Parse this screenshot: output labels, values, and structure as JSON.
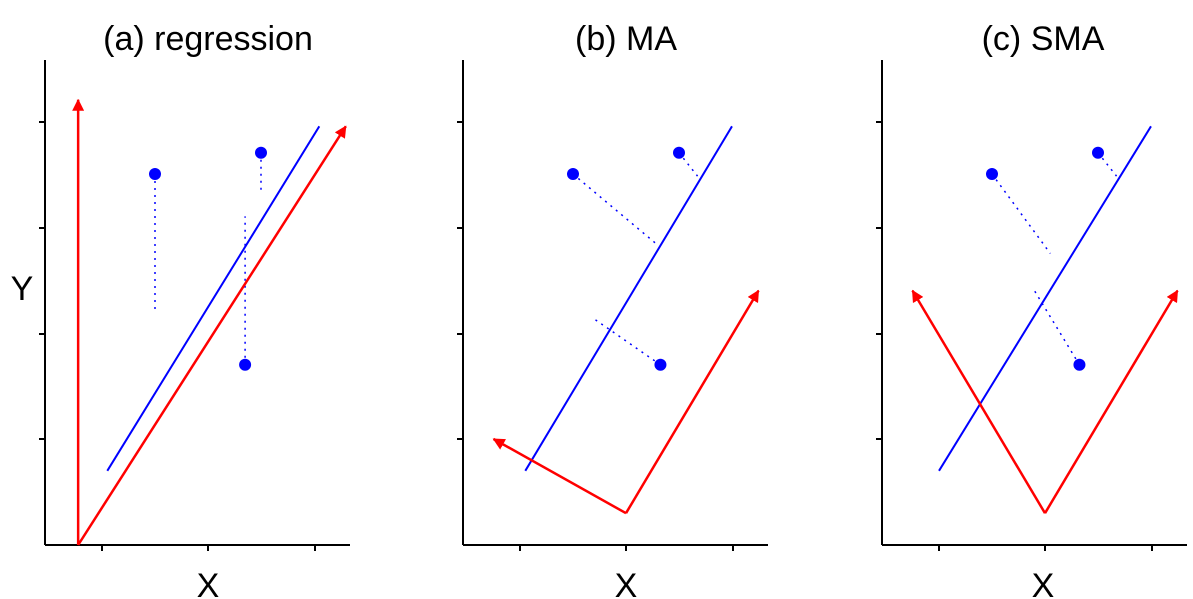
{
  "colors": {
    "fit_line": "#0000ff",
    "residual": "#0000ff",
    "points": "#0000ff",
    "arrows": "#ff0000",
    "axes": "#000000"
  },
  "ylabel": "Y",
  "panels": [
    {
      "id": "a",
      "title": "(a) regression",
      "xlabel": "X",
      "show_ylabel": true,
      "residual_style": "vertical",
      "points": [
        [
          -1.0,
          1.0
        ],
        [
          1.0,
          1.2
        ],
        [
          0.7,
          -0.8
        ]
      ],
      "fit_line": [
        [
          -1.9,
          -1.8
        ],
        [
          2.1,
          1.45
        ]
      ],
      "residual_ends": [
        [
          -1.0,
          -0.3
        ],
        [
          1.0,
          0.85
        ],
        [
          0.7,
          0.6
        ]
      ],
      "arrows": [
        [
          [
            -2.45,
            -2.5
          ],
          [
            -2.45,
            1.7
          ]
        ],
        [
          [
            -2.45,
            -2.5
          ],
          [
            2.6,
            1.45
          ]
        ]
      ]
    },
    {
      "id": "b",
      "title": "(b) MA",
      "xlabel": "X",
      "show_ylabel": false,
      "residual_style": "perpendicular",
      "points": [
        [
          -1.0,
          1.0
        ],
        [
          1.0,
          1.2
        ],
        [
          0.65,
          -0.8
        ]
      ],
      "fit_line": [
        [
          -1.9,
          -1.8
        ],
        [
          2.0,
          1.45
        ]
      ],
      "residual_ends": [
        [
          0.55,
          0.35
        ],
        [
          1.35,
          0.98
        ],
        [
          -0.65,
          -0.35
        ]
      ],
      "arrows": [
        [
          [
            0.0,
            -2.2
          ],
          [
            -2.5,
            -1.5
          ]
        ],
        [
          [
            0.0,
            -2.2
          ],
          [
            2.5,
            -0.1
          ]
        ]
      ]
    },
    {
      "id": "c",
      "title": "(c) SMA",
      "xlabel": "X",
      "show_ylabel": false,
      "residual_style": "diagonal",
      "points": [
        [
          -1.0,
          1.0
        ],
        [
          1.0,
          1.2
        ],
        [
          0.65,
          -0.8
        ]
      ],
      "fit_line": [
        [
          -2.0,
          -1.8
        ],
        [
          2.0,
          1.45
        ]
      ],
      "residual_ends": [
        [
          0.1,
          0.25
        ],
        [
          1.35,
          0.98
        ],
        [
          -0.2,
          -0.1
        ]
      ],
      "arrows": [
        [
          [
            0.0,
            -2.2
          ],
          [
            -2.5,
            -0.1
          ]
        ],
        [
          [
            0.0,
            -2.2
          ],
          [
            2.5,
            -0.1
          ]
        ]
      ]
    }
  ]
}
